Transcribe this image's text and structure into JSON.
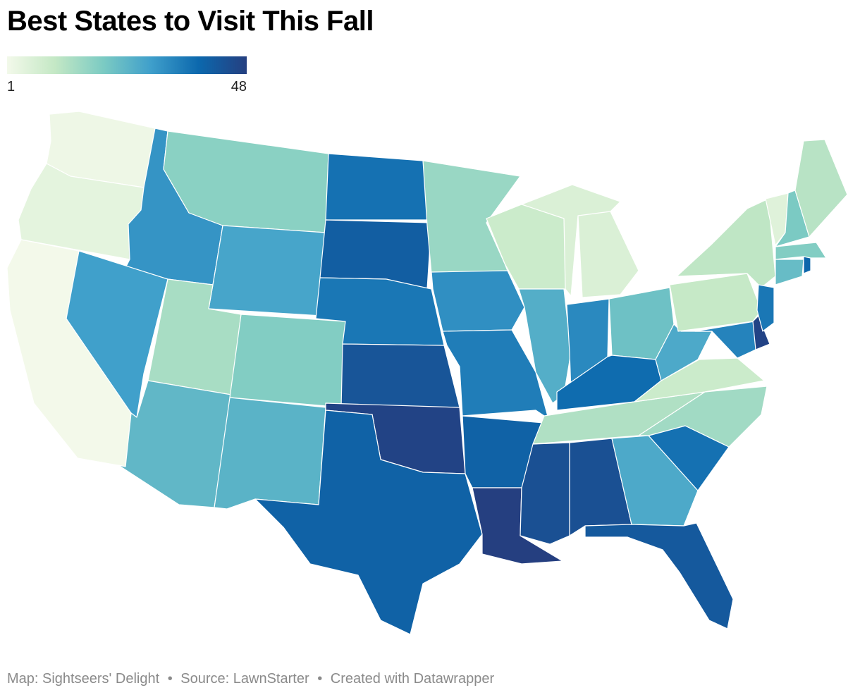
{
  "title": "Best States to Visit This Fall",
  "legend": {
    "min_label": "1",
    "max_label": "48",
    "min": 1,
    "max": 48,
    "colors": [
      "#f3f9ea",
      "#c4e8c5",
      "#7ccbc3",
      "#3f9fcb",
      "#0c68ad",
      "#253f80"
    ]
  },
  "footer": {
    "map_credit": "Map: Sightseers' Delight",
    "source": "Source: LawnStarter",
    "created_with": "Created with Datawrapper",
    "separator": "•"
  },
  "map": {
    "stroke_color": "#ffffff",
    "states": [
      {
        "id": "WA",
        "rank": 2
      },
      {
        "id": "OR",
        "rank": 4
      },
      {
        "id": "CA",
        "rank": 1
      },
      {
        "id": "ID",
        "rank": 31
      },
      {
        "id": "NV",
        "rank": 29
      },
      {
        "id": "MT",
        "rank": 18
      },
      {
        "id": "WY",
        "rank": 28
      },
      {
        "id": "UT",
        "rank": 14
      },
      {
        "id": "AZ",
        "rank": 24
      },
      {
        "id": "CO",
        "rank": 19
      },
      {
        "id": "NM",
        "rank": 25
      },
      {
        "id": "ND",
        "rank": 37
      },
      {
        "id": "SD",
        "rank": 41
      },
      {
        "id": "NE",
        "rank": 36
      },
      {
        "id": "KS",
        "rank": 43
      },
      {
        "id": "OK",
        "rank": 47
      },
      {
        "id": "TX",
        "rank": 40
      },
      {
        "id": "MN",
        "rank": 16
      },
      {
        "id": "IA",
        "rank": 32
      },
      {
        "id": "MO",
        "rank": 35
      },
      {
        "id": "AR",
        "rank": 40
      },
      {
        "id": "LA",
        "rank": 48
      },
      {
        "id": "WI",
        "rank": 9
      },
      {
        "id": "IL",
        "rank": 26
      },
      {
        "id": "MI",
        "rank": 6
      },
      {
        "id": "IN",
        "rank": 33
      },
      {
        "id": "OH",
        "rank": 22
      },
      {
        "id": "KY",
        "rank": 38
      },
      {
        "id": "TN",
        "rank": 13
      },
      {
        "id": "MS",
        "rank": 44
      },
      {
        "id": "AL",
        "rank": 44
      },
      {
        "id": "GA",
        "rank": 27
      },
      {
        "id": "FL",
        "rank": 42
      },
      {
        "id": "SC",
        "rank": 37
      },
      {
        "id": "NC",
        "rank": 15
      },
      {
        "id": "VA",
        "rank": 9
      },
      {
        "id": "WV",
        "rank": 27
      },
      {
        "id": "PA",
        "rank": 10
      },
      {
        "id": "NY",
        "rank": 11
      },
      {
        "id": "MD",
        "rank": 34
      },
      {
        "id": "DE",
        "rank": 47
      },
      {
        "id": "NJ",
        "rank": 36
      },
      {
        "id": "CT",
        "rank": 23
      },
      {
        "id": "RI",
        "rank": 39
      },
      {
        "id": "MA",
        "rank": 19
      },
      {
        "id": "VT",
        "rank": 5
      },
      {
        "id": "NH",
        "rank": 20
      },
      {
        "id": "ME",
        "rank": 12
      }
    ]
  }
}
